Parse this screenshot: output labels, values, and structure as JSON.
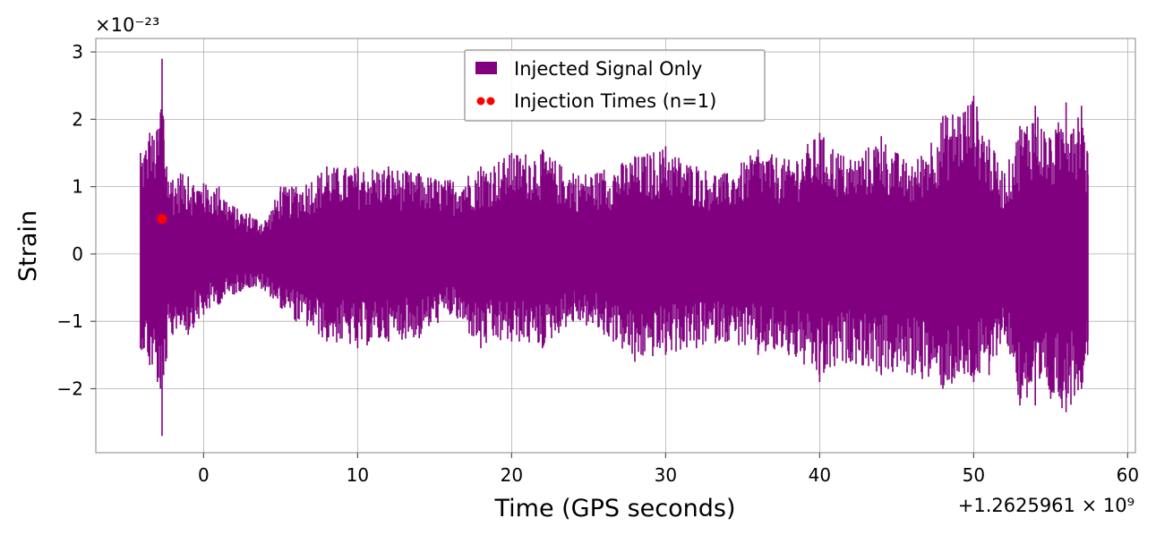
{
  "chart_data": {
    "type": "line",
    "title": "",
    "xlabel": "Time (GPS seconds)",
    "ylabel": "Strain",
    "x_offset_label": "+1.2625961 × 10⁹",
    "y_scale_label": "×10⁻²³",
    "xlim": [
      -7,
      60.5
    ],
    "ylim": [
      -2.95,
      3.2
    ],
    "x_ticks": [
      0,
      10,
      20,
      30,
      40,
      50,
      60
    ],
    "x_tick_labels": [
      "0",
      "10",
      "20",
      "30",
      "40",
      "50",
      "60"
    ],
    "y_ticks": [
      -2,
      -1,
      0,
      1,
      2,
      3
    ],
    "y_tick_labels": [
      "−2",
      "−1",
      "0",
      "1",
      "2",
      "3"
    ],
    "grid": true,
    "legend_position": "top-center",
    "series": [
      {
        "name": "Injected Signal Only",
        "color": "#800080",
        "x_range": [
          -4.1,
          57.4
        ],
        "envelope": {
          "x": [
            -4.1,
            -3.5,
            -3.0,
            -2.8,
            -2.7,
            -2.6,
            -2.4,
            -2.0,
            -1.5,
            -1.0,
            0.0,
            1.0,
            2.0,
            3.0,
            4.0,
            5.0,
            6.0,
            8.0,
            10.0,
            12.0,
            14.0,
            16.0,
            18.0,
            20.0,
            22.0,
            24.0,
            26.0,
            28.0,
            30.0,
            32.0,
            34.0,
            36.0,
            38.0,
            40.0,
            42.0,
            44.0,
            46.0,
            48.0,
            50.0,
            51.0,
            52.0,
            53.0,
            54.0,
            55.0,
            56.0,
            57.0,
            57.4
          ],
          "max": [
            1.5,
            1.8,
            1.85,
            2.1,
            2.9,
            2.0,
            1.3,
            1.1,
            1.2,
            1.15,
            1.05,
            1.0,
            0.7,
            0.6,
            0.5,
            1.0,
            1.0,
            1.3,
            1.3,
            1.3,
            1.2,
            1.1,
            1.3,
            1.5,
            1.55,
            1.2,
            1.25,
            1.45,
            1.6,
            1.3,
            1.2,
            1.55,
            1.4,
            1.8,
            1.4,
            1.75,
            1.3,
            2.05,
            2.35,
            1.7,
            1.2,
            1.9,
            2.2,
            1.7,
            2.25,
            2.2,
            1.5
          ],
          "min": [
            -1.4,
            -1.65,
            -1.9,
            -2.0,
            -2.7,
            -1.8,
            -1.55,
            -1.2,
            -1.05,
            -1.2,
            -0.9,
            -0.75,
            -0.6,
            -0.5,
            -0.55,
            -0.8,
            -1.0,
            -1.3,
            -1.4,
            -1.3,
            -1.25,
            -0.9,
            -1.4,
            -1.3,
            -1.4,
            -1.0,
            -1.2,
            -1.6,
            -1.5,
            -1.4,
            -1.3,
            -1.5,
            -1.5,
            -1.9,
            -1.6,
            -1.8,
            -1.8,
            -2.0,
            -1.9,
            -1.8,
            -1.2,
            -2.25,
            -2.25,
            -2.15,
            -2.35,
            -2.0,
            -1.5
          ]
        }
      },
      {
        "name": "Injection Times (n=1)",
        "type": "scatter",
        "color": "#ff0000",
        "x": [
          -2.7
        ],
        "y": [
          0.52
        ]
      }
    ]
  }
}
